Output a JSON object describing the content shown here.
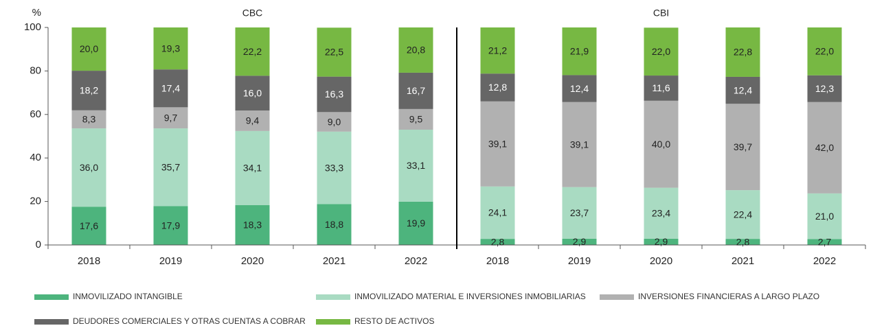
{
  "chart_data": {
    "type": "stacked_bar",
    "ylabel": "%",
    "groups": [
      {
        "name": "CBC",
        "size": 5
      },
      {
        "name": "CBI",
        "size": 5
      }
    ],
    "categories": [
      "2018",
      "2019",
      "2020",
      "2021",
      "2022",
      "2018",
      "2019",
      "2020",
      "2021",
      "2022"
    ],
    "ylim": [
      0,
      100
    ],
    "yticks": [
      0,
      20,
      40,
      60,
      80,
      100
    ],
    "series": [
      {
        "name": "INMOVILIZADO INTANGIBLE",
        "color": "#4db47d",
        "values": [
          17.6,
          17.9,
          18.3,
          18.8,
          19.9,
          2.8,
          2.9,
          2.9,
          2.8,
          2.7
        ],
        "value_labels": [
          "17,6",
          "17,9",
          "18,3",
          "18,8",
          "19,9",
          "2,8",
          "2,9",
          "2,9",
          "2,8",
          "2,7"
        ]
      },
      {
        "name": "INMOVILIZADO MATERIAL E INVERSIONES INMOBILIARIAS",
        "color": "#a9dbc2",
        "values": [
          36.0,
          35.7,
          34.1,
          33.3,
          33.1,
          24.1,
          23.7,
          23.4,
          22.4,
          21.0
        ],
        "value_labels": [
          "36,0",
          "35,7",
          "34,1",
          "33,3",
          "33,1",
          "24,1",
          "23,7",
          "23,4",
          "22,4",
          "21,0"
        ]
      },
      {
        "name": "INVERSIONES FINANCIERAS A LARGO PLAZO",
        "color": "#b1b1b1",
        "values": [
          8.3,
          9.7,
          9.4,
          9.0,
          9.5,
          39.1,
          39.1,
          40.0,
          39.7,
          42.0
        ],
        "value_labels": [
          "8,3",
          "9,7",
          "9,4",
          "9,0",
          "9,5",
          "39,1",
          "39,1",
          "40,0",
          "39,7",
          "42,0"
        ]
      },
      {
        "name": "DEUDORES COMERCIALES Y OTRAS CUENTAS A COBRAR",
        "color": "#666666",
        "values": [
          18.2,
          17.4,
          16.0,
          16.3,
          16.7,
          12.8,
          12.4,
          11.6,
          12.4,
          12.3
        ],
        "value_labels": [
          "18,2",
          "17,4",
          "16,0",
          "16,3",
          "16,7",
          "12,8",
          "12,4",
          "11,6",
          "12,4",
          "12,3"
        ]
      },
      {
        "name": "RESTO DE ACTIVOS",
        "color": "#77b843",
        "values": [
          20.0,
          19.3,
          22.2,
          22.5,
          20.8,
          21.2,
          21.9,
          22.0,
          22.8,
          22.0
        ],
        "value_labels": [
          "20,0",
          "19,3",
          "22,2",
          "22,5",
          "20,8",
          "21,2",
          "21,9",
          "22,0",
          "22,8",
          "22,0"
        ]
      }
    ]
  }
}
